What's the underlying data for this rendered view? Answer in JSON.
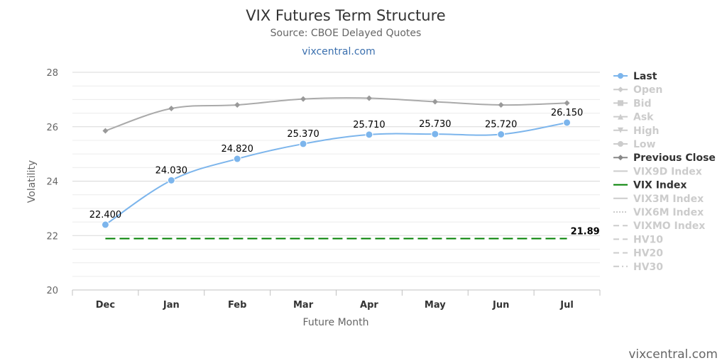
{
  "title": "VIX Futures Term Structure",
  "subtitle": "Source: CBOE Delayed Quotes",
  "site_link": "vixcentral.com",
  "credit": "vixcentral.com",
  "colors": {
    "last": "#7cb5ec",
    "previous_close": "#aaaaaa",
    "vix_index": "#008000",
    "legend_active_text": "#333333",
    "legend_inactive": "#cccccc",
    "grid": "#e6e6e6"
  },
  "chart_data": {
    "type": "line",
    "xlabel": "Future Month",
    "ylabel": "Volatility",
    "categories": [
      "Dec",
      "Jan",
      "Feb",
      "Mar",
      "Apr",
      "May",
      "Jun",
      "Jul"
    ],
    "ylim": [
      20,
      28
    ],
    "yticks": [
      "20",
      "22",
      "24",
      "26",
      "28"
    ],
    "grid": true,
    "legend_position": "right",
    "series": [
      {
        "name": "Last",
        "values": [
          22.4,
          24.03,
          24.82,
          25.37,
          25.71,
          25.73,
          25.72,
          26.15
        ],
        "labels": [
          "22.400",
          "24.030",
          "24.820",
          "25.370",
          "25.710",
          "25.730",
          "25.720",
          "26.150"
        ],
        "marker": "circle",
        "visible": true
      },
      {
        "name": "Previous Close",
        "values": [
          25.85,
          26.67,
          26.8,
          27.02,
          27.05,
          26.92,
          26.8,
          26.87
        ],
        "marker": "diamond",
        "visible": true
      },
      {
        "name": "VIX Index",
        "values": [
          21.89,
          21.89,
          21.89,
          21.89,
          21.89,
          21.89,
          21.89,
          21.89
        ],
        "end_label": "21.89",
        "dash": "long-dash",
        "visible": true
      }
    ]
  },
  "legend": [
    {
      "label": "Last",
      "symbol": "circle-line",
      "active": true
    },
    {
      "label": "Open",
      "symbol": "diamond-line",
      "active": false
    },
    {
      "label": "Bid",
      "symbol": "square-line",
      "active": false
    },
    {
      "label": "Ask",
      "symbol": "triangle-line",
      "active": false
    },
    {
      "label": "High",
      "symbol": "triangle-down-line",
      "active": false
    },
    {
      "label": "Low",
      "symbol": "circle-line",
      "active": false
    },
    {
      "label": "Previous Close",
      "symbol": "diamond-line",
      "active": true
    },
    {
      "label": "VIX9D Index",
      "symbol": "line",
      "active": false
    },
    {
      "label": "VIX Index",
      "symbol": "line",
      "active": true
    },
    {
      "label": "VIX3M Index",
      "symbol": "line",
      "active": false
    },
    {
      "label": "VIX6M Index",
      "symbol": "dotted-line",
      "active": false
    },
    {
      "label": "VIXMO Index",
      "symbol": "dash-line",
      "active": false
    },
    {
      "label": "HV10",
      "symbol": "dash-line",
      "active": false
    },
    {
      "label": "HV20",
      "symbol": "dash-line",
      "active": false
    },
    {
      "label": "HV30",
      "symbol": "dash-dot-line",
      "active": false
    }
  ]
}
